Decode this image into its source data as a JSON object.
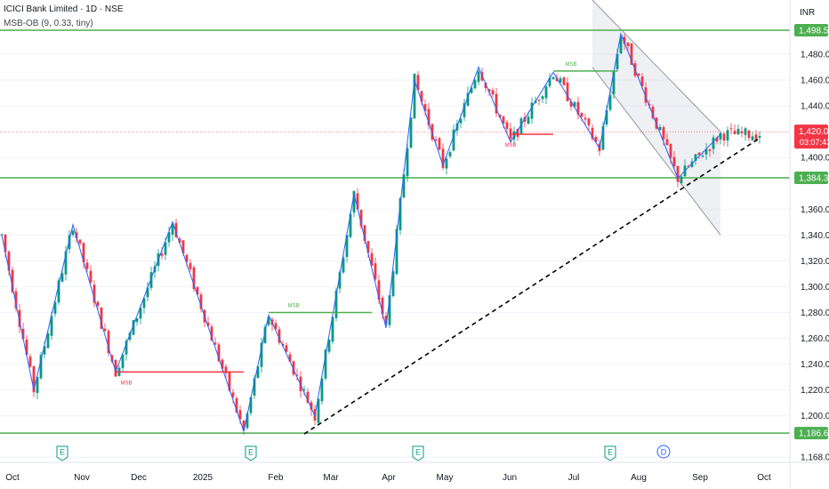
{
  "header": {
    "title": "ICICI Bank Limited · 1D · NSE",
    "indicator": "MSB-OB (9, 0.33, tiny)",
    "currency": "INR"
  },
  "colors": {
    "up": "#089981",
    "down": "#f23645",
    "zigzag": "#2962ff",
    "level": "#4caf50",
    "msb_green": "#4caf50",
    "msb_red": "#f23645",
    "trend": "#000000",
    "channel_fill": "#d1d4dc",
    "price_tag": "#f23645"
  },
  "chart_data": {
    "type": "candlestick",
    "y_ticks": [
      "1,480.00",
      "1,460.00",
      "1,440.00",
      "1,400.00",
      "1,360.00",
      "1,340.00",
      "1,320.00",
      "1,300.00",
      "1,280.00",
      "1,260.00",
      "1,240.00",
      "1,220.00",
      "1,200.00",
      "1,168.00"
    ],
    "ylim": [
      1164,
      1522
    ],
    "x_labels": [
      "Oct",
      "Nov",
      "Dec",
      "2025",
      "Feb",
      "Mar",
      "Apr",
      "May",
      "Jun",
      "Jul",
      "Aug",
      "Sep",
      "Oct"
    ],
    "levels": [
      {
        "value": 1498.55,
        "label": "1,498.55"
      },
      {
        "value": 1384.35,
        "label": "1,384.35"
      },
      {
        "value": 1186.6,
        "label": "1,186.60"
      }
    ],
    "last_price": {
      "value": 1420.0,
      "label": "1,420.00",
      "countdown": "03:07:43"
    },
    "msb_labels": [
      {
        "text": "MSB",
        "color": "red",
        "index": 35,
        "value": 1234
      },
      {
        "text": "MSB",
        "color": "green",
        "index": 82,
        "value": 1280
      },
      {
        "text": "MSB",
        "color": "red",
        "index": 143,
        "value": 1418
      },
      {
        "text": "MSB",
        "color": "green",
        "index": 160,
        "value": 1467
      }
    ],
    "zigzag_pivots": [
      [
        0,
        1340
      ],
      [
        9,
        1220
      ],
      [
        20,
        1348
      ],
      [
        32,
        1234
      ],
      [
        48,
        1350
      ],
      [
        68,
        1188
      ],
      [
        75,
        1278
      ],
      [
        88,
        1200
      ],
      [
        99,
        1372
      ],
      [
        108,
        1268
      ],
      [
        116,
        1460
      ],
      [
        124,
        1394
      ],
      [
        134,
        1470
      ],
      [
        143,
        1412
      ],
      [
        155,
        1466
      ],
      [
        168,
        1407
      ],
      [
        174,
        1496
      ],
      [
        190,
        1384
      ],
      [
        202,
        1418
      ]
    ],
    "trendline": {
      "from": {
        "index": 85,
        "value": 1186
      },
      "to": {
        "index": 213,
        "value": 1415
      }
    },
    "channel": {
      "upper": [
        {
          "index": 166,
          "value": 1522
        },
        {
          "index": 202,
          "value": 1420
        }
      ],
      "lower": [
        {
          "index": 166,
          "value": 1470
        },
        {
          "index": 202,
          "value": 1340
        }
      ]
    },
    "event_markers": [
      {
        "text": "E",
        "index": 17
      },
      {
        "text": "E",
        "index": 70
      },
      {
        "text": "E",
        "index": 117
      },
      {
        "text": "E",
        "index": 171
      },
      {
        "text": "D",
        "index": 186
      }
    ]
  }
}
